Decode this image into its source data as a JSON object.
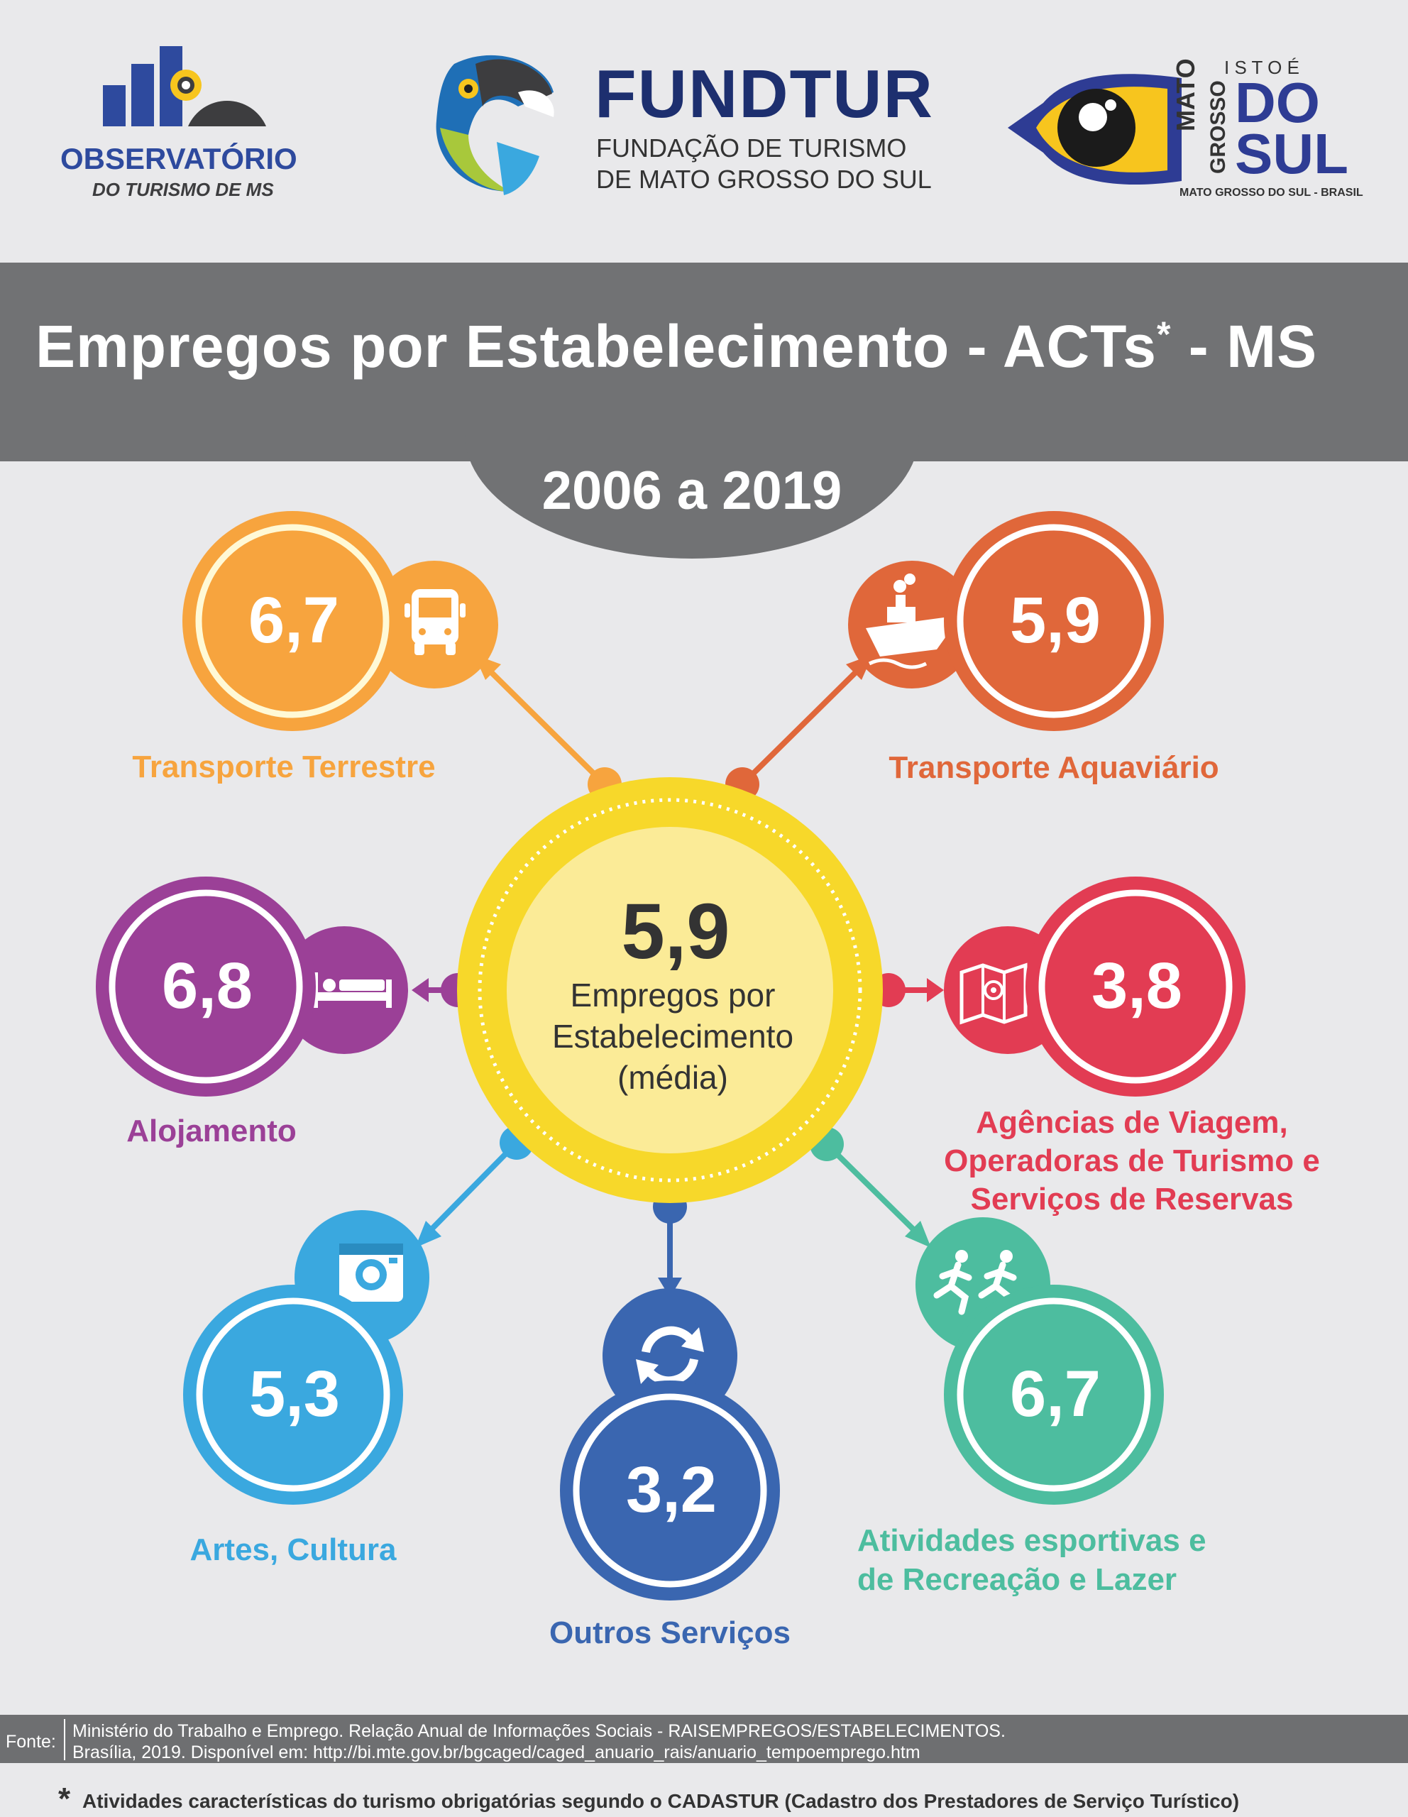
{
  "header": {
    "observatorio_line1": "OBSERVATÓRIO",
    "observatorio_line2": "DO TURISMO DE MS",
    "fundtur_name": "FUNDTUR",
    "fundtur_line1": "FUNDAÇÃO DE TURISMO",
    "fundtur_line2": "DE MATO GROSSO DO SUL",
    "ms_isto_e": "I S T O   É",
    "ms_mato": "MATO",
    "ms_grosso": "GROSSO",
    "ms_do": "DO",
    "ms_sul": "SUL",
    "ms_caption": "MATO GROSSO DO SUL - BRASIL"
  },
  "title": {
    "main": "Empregos por Estabelecimento - ACTs",
    "asterisk": "*",
    "suffix": " - MS"
  },
  "period": "2006 a 2019",
  "center": {
    "value": "5,9",
    "line1": "Empregos por",
    "line2": "Estabelecimento",
    "line3": "(média)",
    "color": "#f7d82a"
  },
  "categories": [
    {
      "value": "6,7",
      "label": "Transporte Terrestre",
      "color": "#f7a43e",
      "icon": "bus-icon"
    },
    {
      "value": "5,9",
      "label": "Transporte Aquaviário",
      "color": "#e0673a",
      "icon": "ship-icon"
    },
    {
      "value": "6,8",
      "label": "Alojamento",
      "color": "#9b4097",
      "icon": "bed-icon"
    },
    {
      "value": "3,8",
      "label_line1": "Agências de Viagem,",
      "label_line2": "Operadoras de Turismo e",
      "label_line3": "Serviços de Reservas",
      "color": "#e23c53",
      "icon": "map-icon"
    },
    {
      "value": "5,3",
      "label": "Artes, Cultura",
      "color": "#3aa8df",
      "icon": "camera-icon"
    },
    {
      "value": "3,2",
      "label": "Outros Serviços",
      "color": "#3a66b0",
      "icon": "refresh-icon"
    },
    {
      "value": "6,7",
      "label_line1": "Atividades esportivas e",
      "label_line2": "de Recreação e Lazer",
      "color": "#4dbd9f",
      "icon": "running-icon"
    }
  ],
  "footer": {
    "fonte_label": "Fonte:",
    "source_line1": "Ministério do Trabalho e Emprego. Relação Anual de Informações Sociais - RAISEMPREGOS/ESTABELECIMENTOS.",
    "source_line2": "Brasília, 2019. Disponível em: http://bi.mte.gov.br/bgcaged/caged_anuario_rais/anuario_tempoemprego.htm",
    "footnote_star": "*",
    "footnote": "Atividades características do turismo obrigatórias segundo o CADASTUR (Cadastro dos Prestadores de Serviço Turístico)"
  }
}
